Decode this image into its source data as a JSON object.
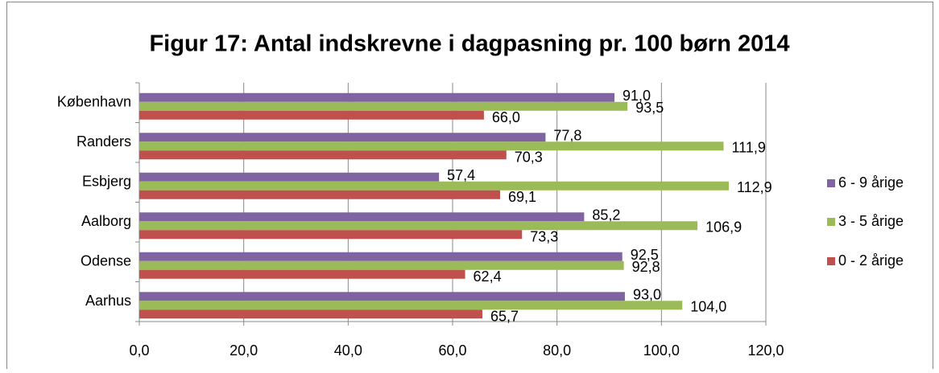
{
  "chart_data": {
    "type": "hbar",
    "title": "Figur 17: Antal indskrevne i dagpasning pr. 100 børn 2014",
    "categories": [
      "København",
      "Randers",
      "Esbjerg",
      "Aalborg",
      "Odense",
      "Aarhus"
    ],
    "series": [
      {
        "name": "6 - 9 årige",
        "color": "#8064a2",
        "values": [
          91.0,
          77.8,
          57.4,
          85.2,
          92.5,
          93.0
        ],
        "value_labels": [
          "91,0",
          "77,8",
          "57,4",
          "85,2",
          "92,5",
          "93,0"
        ]
      },
      {
        "name": "3 - 5 årige",
        "color": "#9bbb59",
        "values": [
          93.5,
          111.9,
          112.9,
          106.9,
          92.8,
          104.0
        ],
        "value_labels": [
          "93,5",
          "111,9",
          "112,9",
          "106,9",
          "92,8",
          "104,0"
        ]
      },
      {
        "name": "0 - 2 årige",
        "color": "#c0504d",
        "values": [
          66.0,
          70.3,
          69.1,
          73.3,
          62.4,
          65.7
        ],
        "value_labels": [
          "66,0",
          "70,3",
          "69,1",
          "73,3",
          "62,4",
          "65,7"
        ]
      }
    ],
    "xlim": [
      0,
      120
    ],
    "xticks": [
      {
        "value": 0,
        "label": "0,0"
      },
      {
        "value": 20,
        "label": "20,0"
      },
      {
        "value": 40,
        "label": "40,0"
      },
      {
        "value": 60,
        "label": "60,0"
      },
      {
        "value": 80,
        "label": "80,0"
      },
      {
        "value": 100,
        "label": "100,0"
      },
      {
        "value": 120,
        "label": "120,0"
      }
    ],
    "grid": true,
    "legend": "right"
  }
}
